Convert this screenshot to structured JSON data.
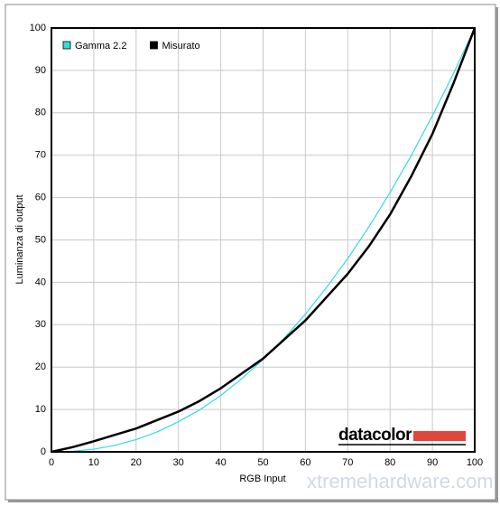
{
  "chart_data": {
    "type": "line",
    "xlabel": "RGB Input",
    "ylabel": "Luminanza di output",
    "x": [
      0,
      5,
      10,
      15,
      20,
      25,
      30,
      35,
      40,
      45,
      50,
      55,
      60,
      65,
      70,
      75,
      80,
      85,
      90,
      95,
      100
    ],
    "series": [
      {
        "name": "Gamma 2.2",
        "color": "#33dddd",
        "values": [
          0,
          0.14,
          0.63,
          1.53,
          2.9,
          4.7,
          7.1,
          9.9,
          13.3,
          17.3,
          21.8,
          26.8,
          32.5,
          38.8,
          45.6,
          53.1,
          61.2,
          69.9,
          79.3,
          89.3,
          100
        ]
      },
      {
        "name": "Misurato",
        "color": "#000000",
        "values": [
          0,
          1.1,
          2.5,
          4,
          5.5,
          7.5,
          9.5,
          12,
          15,
          18.5,
          22,
          26.5,
          31,
          36.5,
          42,
          48.5,
          56,
          65,
          75,
          87,
          100
        ]
      }
    ],
    "xlim": [
      0,
      100
    ],
    "xticks": [
      0,
      10,
      20,
      30,
      40,
      50,
      60,
      70,
      80,
      90,
      100
    ],
    "ylim": [
      0,
      100
    ],
    "yticks": [
      0,
      10,
      20,
      30,
      40,
      50,
      60,
      70,
      80,
      90,
      100
    ],
    "grid": true,
    "legend": "top-left",
    "annotations": [
      "datacolor",
      "xtremehardware.com"
    ]
  }
}
